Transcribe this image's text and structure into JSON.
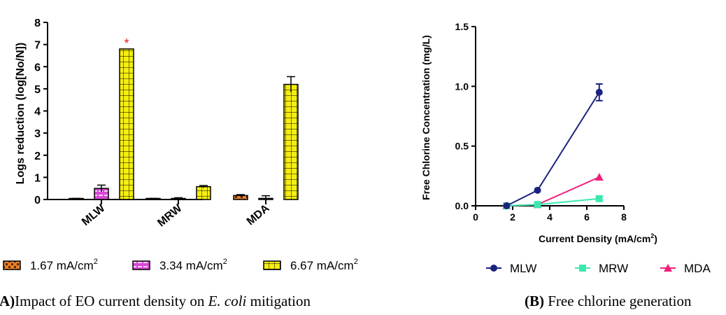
{
  "chart_data": [
    {
      "type": "bar",
      "panel": "A",
      "caption": {
        "label": "(A)",
        "prefix": "Impact of EO current density on ",
        "italic": "E. coli",
        "suffix": " mitigation"
      },
      "ylabel": "Logs reduction (log[No/N])",
      "xlabel": "",
      "ylim": [
        0,
        8
      ],
      "yticks": [
        "0",
        "1",
        "2",
        "3",
        "4",
        "5",
        "6",
        "7",
        "8"
      ],
      "categories": [
        "MLW",
        "MRW",
        "MDA"
      ],
      "series": [
        {
          "name": "1.67 mA/cm",
          "sup": "2",
          "color": "#e8802a",
          "values": [
            0.03,
            0.03,
            0.18
          ],
          "errors": [
            0.02,
            0.02,
            0.04
          ]
        },
        {
          "name": "3.34 mA/cm",
          "sup": "2",
          "color": "#d946d9",
          "values": [
            0.5,
            0.03,
            0.05
          ],
          "errors": [
            0.15,
            0.05,
            0.12
          ]
        },
        {
          "name": "6.67 mA/cm",
          "sup": "2",
          "color": "#f5ee10",
          "values": [
            6.8,
            0.58,
            5.2
          ],
          "errors": [
            0.0,
            0.05,
            0.35
          ]
        }
      ],
      "annotation": {
        "text": "*",
        "color": "#e0201c",
        "category": "MLW",
        "series": 2
      },
      "legend": "bottom"
    },
    {
      "type": "line",
      "panel": "B",
      "caption": {
        "label": "(B)",
        "text": " Free chlorine generation"
      },
      "ylabel": "Free Chlorine Concentration (mg/L)",
      "xlabel": "Current Density (mA/cm",
      "xlabel_sup": "2",
      "xlabel_end": ")",
      "xlim": [
        0,
        8
      ],
      "ylim": [
        0,
        1.5
      ],
      "xticks": [
        "0",
        "2",
        "4",
        "6",
        "8"
      ],
      "yticks": [
        "0.0",
        "0.5",
        "1.0",
        "1.5"
      ],
      "x": [
        1.67,
        3.34,
        6.67
      ],
      "series": [
        {
          "name": "MLW",
          "color": "#1a237e",
          "marker": "circle",
          "values": [
            0.0,
            0.13,
            0.95
          ],
          "errors": [
            0,
            0,
            0.07
          ]
        },
        {
          "name": "MRW",
          "color": "#3de8b0",
          "marker": "square",
          "values": [
            0.0,
            0.01,
            0.06
          ],
          "errors": [
            0,
            0,
            0.02
          ]
        },
        {
          "name": "MDA",
          "color": "#f0207a",
          "marker": "triangle",
          "values": [
            0.0,
            0.01,
            0.24
          ],
          "errors": [
            0,
            0,
            0
          ]
        }
      ],
      "legend": "bottom"
    }
  ]
}
